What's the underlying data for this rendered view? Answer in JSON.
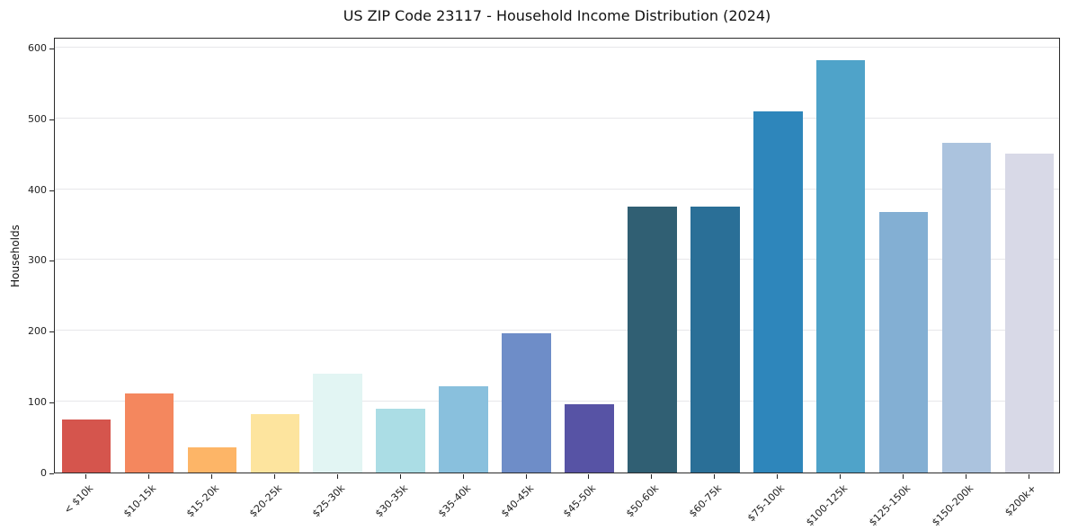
{
  "chart_data": {
    "type": "bar",
    "title": "US ZIP Code 23117 - Household Income Distribution (2024)",
    "xlabel": "",
    "ylabel": "Households",
    "categories": [
      "< $10k",
      "$10-15k",
      "$15-20k",
      "$20-25k",
      "$25-30k",
      "$30-35k",
      "$35-40k",
      "$40-45k",
      "$45-50k",
      "$50-60k",
      "$60-75k",
      "$75-100k",
      "$100-125k",
      "$125-150k",
      "$150-200k",
      "$200k+"
    ],
    "values": [
      75,
      112,
      35,
      82,
      140,
      90,
      122,
      197,
      97,
      375,
      375,
      510,
      582,
      368,
      465,
      450
    ],
    "bar_colors": [
      "#d5554d",
      "#f4875e",
      "#fdb567",
      "#fde49e",
      "#e2f5f3",
      "#abdde5",
      "#89c0dd",
      "#6e8dc8",
      "#5753a5",
      "#305f73",
      "#2a6f97",
      "#2e86bb",
      "#4fa3c9",
      "#83afd3",
      "#abc3de",
      "#d8d9e7"
    ],
    "ylim": [
      0,
      615
    ],
    "yticks": [
      0,
      100,
      200,
      300,
      400,
      500,
      600
    ],
    "grid": "horizontal",
    "legend": "none",
    "plot_background": "#ffffff",
    "gridline_color": "#e7e7ea"
  }
}
